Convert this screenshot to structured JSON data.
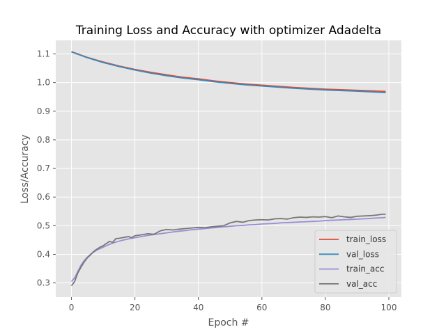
{
  "chart_data": {
    "type": "line",
    "title": "Training Loss and Accuracy with optimizer Adadelta",
    "xlabel": "Epoch #",
    "ylabel": "Loss/Accuracy",
    "xlim": [
      -4.95,
      103.95
    ],
    "ylim": [
      0.2505,
      1.1475
    ],
    "xticks": [
      0,
      20,
      40,
      60,
      80,
      100
    ],
    "xtick_labels": [
      "0",
      "20",
      "40",
      "60",
      "80",
      "100"
    ],
    "yticks": [
      0.3,
      0.4,
      0.5,
      0.6,
      0.7,
      0.8,
      0.9,
      1.0,
      1.1
    ],
    "ytick_labels": [
      "0.3",
      "0.4",
      "0.5",
      "0.6",
      "0.7",
      "0.8",
      "0.9",
      "1.0",
      "1.1"
    ],
    "grid": true,
    "legend_position": "bottom-right",
    "background": "#e5e5e5",
    "grid_color": "#ffffff",
    "series": [
      {
        "name": "train_loss",
        "color": "#e24a33",
        "x": [
          0,
          5,
          10,
          15,
          20,
          25,
          30,
          35,
          40,
          45,
          50,
          55,
          60,
          65,
          70,
          75,
          80,
          85,
          90,
          95,
          99
        ],
        "values": [
          1.108,
          1.088,
          1.072,
          1.058,
          1.046,
          1.036,
          1.027,
          1.019,
          1.013,
          1.006,
          1.0,
          0.995,
          0.991,
          0.987,
          0.983,
          0.98,
          0.977,
          0.975,
          0.973,
          0.971,
          0.969
        ]
      },
      {
        "name": "val_loss",
        "color": "#348abd",
        "x": [
          0,
          5,
          10,
          15,
          20,
          25,
          30,
          35,
          40,
          45,
          50,
          55,
          60,
          65,
          70,
          75,
          80,
          85,
          90,
          95,
          99
        ],
        "values": [
          1.107,
          1.087,
          1.07,
          1.056,
          1.044,
          1.033,
          1.024,
          1.016,
          1.01,
          1.003,
          0.997,
          0.992,
          0.988,
          0.984,
          0.98,
          0.977,
          0.974,
          0.972,
          0.97,
          0.967,
          0.965
        ]
      },
      {
        "name": "train_acc",
        "color": "#988ed5",
        "x": [
          0,
          1,
          2,
          3,
          4,
          5,
          6,
          7,
          8,
          9,
          10,
          12,
          14,
          16,
          18,
          20,
          22,
          24,
          26,
          28,
          30,
          32,
          34,
          36,
          38,
          40,
          42,
          44,
          46,
          48,
          50,
          52,
          54,
          56,
          58,
          60,
          62,
          64,
          66,
          68,
          70,
          72,
          74,
          76,
          78,
          80,
          82,
          84,
          86,
          88,
          90,
          92,
          94,
          96,
          98,
          99
        ],
        "values": [
          0.305,
          0.318,
          0.34,
          0.362,
          0.378,
          0.39,
          0.4,
          0.408,
          0.415,
          0.42,
          0.425,
          0.435,
          0.443,
          0.449,
          0.454,
          0.458,
          0.462,
          0.466,
          0.469,
          0.472,
          0.475,
          0.478,
          0.481,
          0.483,
          0.486,
          0.488,
          0.49,
          0.492,
          0.494,
          0.496,
          0.498,
          0.5,
          0.501,
          0.503,
          0.504,
          0.506,
          0.507,
          0.508,
          0.51,
          0.511,
          0.512,
          0.513,
          0.514,
          0.515,
          0.516,
          0.518,
          0.519,
          0.52,
          0.521,
          0.522,
          0.523,
          0.524,
          0.525,
          0.527,
          0.528,
          0.529
        ]
      },
      {
        "name": "val_acc",
        "color": "#777777",
        "x": [
          0,
          1,
          2,
          3,
          4,
          5,
          6,
          7,
          8,
          9,
          10,
          11,
          12,
          13,
          14,
          15,
          16,
          17,
          18,
          19,
          20,
          22,
          24,
          26,
          28,
          30,
          32,
          34,
          36,
          38,
          40,
          42,
          44,
          46,
          48,
          50,
          52,
          54,
          56,
          58,
          60,
          62,
          64,
          66,
          68,
          70,
          72,
          74,
          76,
          78,
          80,
          82,
          84,
          86,
          88,
          90,
          92,
          94,
          96,
          98,
          99
        ],
        "values": [
          0.29,
          0.305,
          0.335,
          0.355,
          0.373,
          0.388,
          0.398,
          0.41,
          0.418,
          0.425,
          0.43,
          0.438,
          0.445,
          0.442,
          0.455,
          0.456,
          0.458,
          0.46,
          0.462,
          0.458,
          0.465,
          0.468,
          0.472,
          0.47,
          0.482,
          0.487,
          0.485,
          0.488,
          0.49,
          0.492,
          0.494,
          0.493,
          0.496,
          0.498,
          0.5,
          0.51,
          0.515,
          0.512,
          0.518,
          0.52,
          0.521,
          0.52,
          0.524,
          0.525,
          0.523,
          0.528,
          0.53,
          0.529,
          0.531,
          0.53,
          0.532,
          0.528,
          0.534,
          0.531,
          0.529,
          0.533,
          0.534,
          0.535,
          0.537,
          0.54,
          0.54
        ]
      }
    ]
  }
}
